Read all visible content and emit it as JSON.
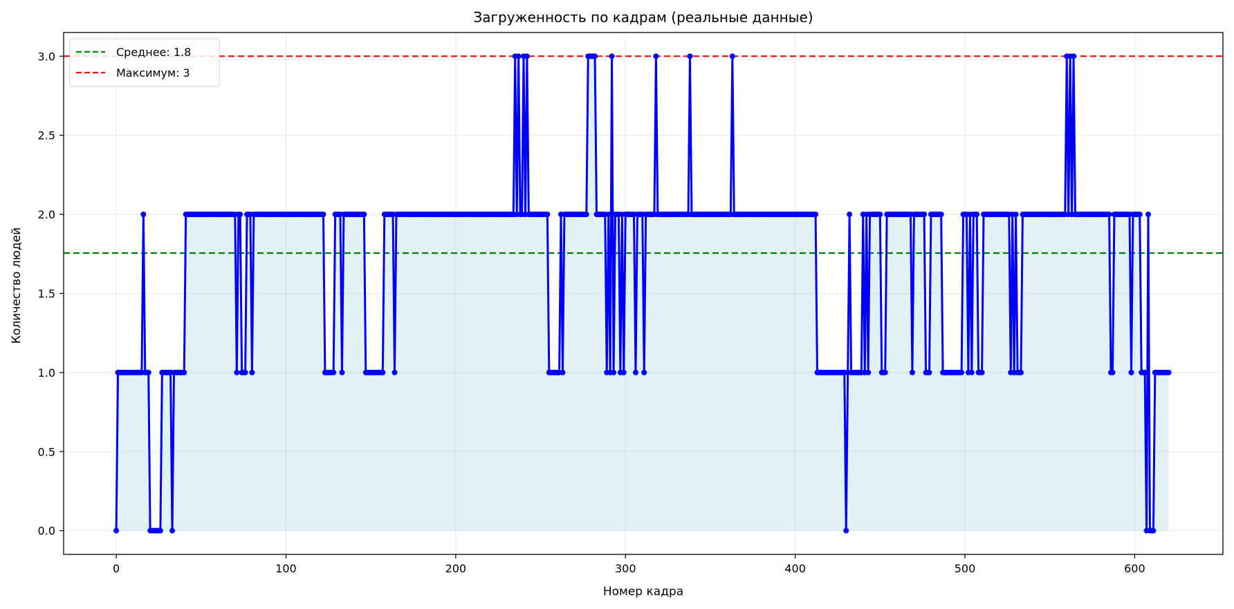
{
  "chart_data": {
    "type": "line",
    "title": "Загруженность по кадрам (реальные данные)",
    "xlabel": "Номер кадра",
    "ylabel": "Количество людей",
    "xlim": [
      -31,
      652
    ],
    "ylim": [
      -0.15,
      3.15
    ],
    "xticks": [
      0,
      100,
      200,
      300,
      400,
      500,
      600
    ],
    "yticks": [
      0.0,
      0.5,
      1.0,
      1.5,
      2.0,
      2.5,
      3.0
    ],
    "grid": true,
    "legend_position": "top-left",
    "series": [
      {
        "color": "#0000ff",
        "fill_color": "#add8e6",
        "runs": [
          [
            0,
            0
          ],
          [
            1,
            1
          ],
          [
            15,
            1
          ],
          [
            16,
            2
          ],
          [
            17,
            1
          ],
          [
            19,
            1
          ],
          [
            20,
            0
          ],
          [
            26,
            0
          ],
          [
            27,
            1
          ],
          [
            32,
            1
          ],
          [
            33,
            0
          ],
          [
            34,
            1
          ],
          [
            40,
            1
          ],
          [
            41,
            2
          ],
          [
            70,
            2
          ],
          [
            71,
            1
          ],
          [
            72,
            2
          ],
          [
            73,
            2
          ],
          [
            74,
            1
          ],
          [
            76,
            1
          ],
          [
            77,
            2
          ],
          [
            79,
            2
          ],
          [
            80,
            1
          ],
          [
            81,
            2
          ],
          [
            122,
            2
          ],
          [
            123,
            1
          ],
          [
            128,
            1
          ],
          [
            129,
            2
          ],
          [
            132,
            2
          ],
          [
            133,
            1
          ],
          [
            134,
            2
          ],
          [
            146,
            2
          ],
          [
            147,
            1
          ],
          [
            157,
            1
          ],
          [
            158,
            2
          ],
          [
            163,
            2
          ],
          [
            164,
            1
          ],
          [
            165,
            2
          ],
          [
            234,
            2
          ],
          [
            235,
            3
          ],
          [
            236,
            2
          ],
          [
            237,
            3
          ],
          [
            238,
            2
          ],
          [
            240,
            3
          ],
          [
            241,
            2
          ],
          [
            242,
            3
          ],
          [
            243,
            2
          ],
          [
            254,
            2
          ],
          [
            255,
            1
          ],
          [
            261,
            1
          ],
          [
            262,
            2
          ],
          [
            263,
            1
          ],
          [
            264,
            2
          ],
          [
            277,
            2
          ],
          [
            278,
            3
          ],
          [
            282,
            3
          ],
          [
            283,
            2
          ],
          [
            288,
            2
          ],
          [
            289,
            1
          ],
          [
            290,
            2
          ],
          [
            291,
            1
          ],
          [
            292,
            3
          ],
          [
            293,
            1
          ],
          [
            294,
            2
          ],
          [
            296,
            2
          ],
          [
            297,
            1
          ],
          [
            298,
            2
          ],
          [
            299,
            1
          ],
          [
            300,
            2
          ],
          [
            305,
            2
          ],
          [
            306,
            1
          ],
          [
            307,
            2
          ],
          [
            310,
            2
          ],
          [
            311,
            1
          ],
          [
            312,
            2
          ],
          [
            317,
            2
          ],
          [
            318,
            3
          ],
          [
            319,
            2
          ],
          [
            337,
            2
          ],
          [
            338,
            3
          ],
          [
            339,
            2
          ],
          [
            362,
            2
          ],
          [
            363,
            3
          ],
          [
            364,
            2
          ],
          [
            412,
            2
          ],
          [
            413,
            1
          ],
          [
            429,
            1
          ],
          [
            430,
            0
          ],
          [
            431,
            1
          ],
          [
            432,
            2
          ],
          [
            433,
            1
          ],
          [
            439,
            1
          ],
          [
            440,
            2
          ],
          [
            441,
            1
          ],
          [
            442,
            2
          ],
          [
            443,
            1
          ],
          [
            444,
            2
          ],
          [
            450,
            2
          ],
          [
            451,
            1
          ],
          [
            453,
            1
          ],
          [
            454,
            2
          ],
          [
            468,
            2
          ],
          [
            469,
            1
          ],
          [
            470,
            2
          ],
          [
            476,
            2
          ],
          [
            477,
            1
          ],
          [
            479,
            1
          ],
          [
            480,
            2
          ],
          [
            486,
            2
          ],
          [
            487,
            1
          ],
          [
            498,
            1
          ],
          [
            499,
            2
          ],
          [
            501,
            2
          ],
          [
            502,
            1
          ],
          [
            503,
            2
          ],
          [
            504,
            1
          ],
          [
            505,
            2
          ],
          [
            507,
            2
          ],
          [
            508,
            1
          ],
          [
            510,
            1
          ],
          [
            511,
            2
          ],
          [
            526,
            2
          ],
          [
            527,
            1
          ],
          [
            528,
            2
          ],
          [
            529,
            1
          ],
          [
            530,
            2
          ],
          [
            531,
            1
          ],
          [
            533,
            1
          ],
          [
            534,
            2
          ],
          [
            559,
            2
          ],
          [
            560,
            3
          ],
          [
            561,
            2
          ],
          [
            562,
            3
          ],
          [
            563,
            2
          ],
          [
            564,
            3
          ],
          [
            565,
            2
          ],
          [
            585,
            2
          ],
          [
            586,
            1
          ],
          [
            587,
            1
          ],
          [
            588,
            2
          ],
          [
            597,
            2
          ],
          [
            598,
            1
          ],
          [
            599,
            2
          ],
          [
            603,
            2
          ],
          [
            604,
            1
          ],
          [
            606,
            1
          ],
          [
            607,
            0
          ],
          [
            608,
            2
          ],
          [
            609,
            0
          ],
          [
            611,
            0
          ],
          [
            612,
            1
          ],
          [
            620,
            1
          ]
        ]
      }
    ],
    "reference_lines": [
      {
        "label": "Среднее: 1.8",
        "y": 1.755,
        "color": "#008000"
      },
      {
        "label": "Максимум: 3",
        "y": 3.0,
        "color": "#ff0000"
      }
    ]
  }
}
